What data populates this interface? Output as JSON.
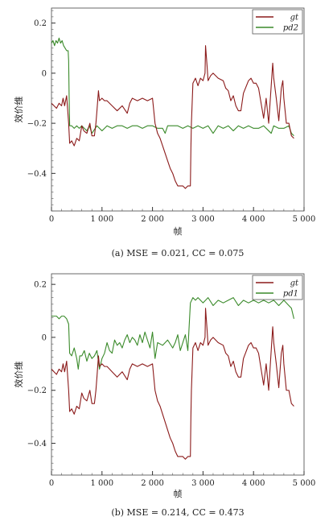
{
  "chart_data": [
    {
      "type": "line",
      "xlabel": "帧",
      "ylabel": "效价维",
      "xlim": [
        0,
        5000
      ],
      "ylim": [
        -0.55,
        0.26
      ],
      "xticks": [
        0,
        1000,
        2000,
        3000,
        4000,
        5000
      ],
      "xtick_labels": [
        "0",
        "1 000",
        "2 000",
        "3 000",
        "4 000",
        "5 000"
      ],
      "yticks": [
        0.2,
        0,
        -0.2,
        -0.4
      ],
      "ytick_labels": [
        "0.2",
        "0",
        "−0.2",
        "−0.4"
      ],
      "legend_position": "top-right",
      "caption": "(a) MSE = 0.021, CC = 0.075",
      "series": [
        {
          "name": "gt",
          "color": "#8b1a1a",
          "x": [
            0,
            50,
            100,
            150,
            200,
            230,
            260,
            300,
            340,
            360,
            400,
            450,
            500,
            550,
            600,
            640,
            700,
            760,
            800,
            850,
            880,
            900,
            930,
            950,
            1000,
            1050,
            1100,
            1150,
            1200,
            1300,
            1400,
            1500,
            1550,
            1600,
            1700,
            1800,
            1900,
            2000,
            2050,
            2100,
            2150,
            2200,
            2250,
            2300,
            2350,
            2400,
            2450,
            2500,
            2550,
            2600,
            2650,
            2700,
            2750,
            2760,
            2770,
            2800,
            2850,
            2900,
            2950,
            3000,
            3040,
            3050,
            3080,
            3100,
            3150,
            3200,
            3300,
            3400,
            3450,
            3500,
            3550,
            3600,
            3650,
            3700,
            3750,
            3800,
            3900,
            3950,
            4000,
            4050,
            4100,
            4200,
            4250,
            4300,
            4350,
            4380,
            4400,
            4450,
            4500,
            4550,
            4580,
            4600,
            4650,
            4700,
            4750,
            4800
          ],
          "y": [
            -0.12,
            -0.13,
            -0.14,
            -0.12,
            -0.13,
            -0.1,
            -0.13,
            -0.09,
            -0.2,
            -0.28,
            -0.27,
            -0.29,
            -0.26,
            -0.27,
            -0.21,
            -0.23,
            -0.24,
            -0.2,
            -0.25,
            -0.25,
            -0.2,
            -0.15,
            -0.07,
            -0.11,
            -0.1,
            -0.11,
            -0.11,
            -0.12,
            -0.13,
            -0.15,
            -0.13,
            -0.16,
            -0.12,
            -0.1,
            -0.11,
            -0.1,
            -0.11,
            -0.1,
            -0.2,
            -0.24,
            -0.26,
            -0.29,
            -0.32,
            -0.35,
            -0.38,
            -0.4,
            -0.43,
            -0.45,
            -0.45,
            -0.45,
            -0.46,
            -0.45,
            -0.45,
            -0.3,
            -0.2,
            -0.04,
            -0.02,
            -0.05,
            -0.02,
            -0.03,
            0.0,
            0.11,
            0.03,
            -0.03,
            -0.01,
            0.0,
            -0.02,
            -0.03,
            -0.06,
            -0.07,
            -0.11,
            -0.09,
            -0.13,
            -0.15,
            -0.15,
            -0.08,
            -0.03,
            -0.02,
            -0.04,
            -0.04,
            -0.06,
            -0.18,
            -0.1,
            -0.2,
            -0.05,
            0.04,
            -0.02,
            -0.1,
            -0.19,
            -0.06,
            -0.03,
            -0.1,
            -0.2,
            -0.2,
            -0.25,
            -0.26
          ]
        },
        {
          "name": "pd2",
          "color": "#3a8a2a",
          "x": [
            0,
            30,
            60,
            90,
            120,
            150,
            180,
            210,
            240,
            270,
            300,
            330,
            340,
            350,
            360,
            400,
            450,
            500,
            550,
            600,
            650,
            700,
            750,
            800,
            900,
            1000,
            1100,
            1200,
            1300,
            1400,
            1500,
            1600,
            1700,
            1800,
            1900,
            2000,
            2100,
            2200,
            2250,
            2300,
            2400,
            2500,
            2600,
            2700,
            2800,
            2900,
            3000,
            3100,
            3200,
            3300,
            3400,
            3500,
            3600,
            3700,
            3800,
            3900,
            4000,
            4100,
            4200,
            4300,
            4350,
            4400,
            4500,
            4600,
            4700,
            4750,
            4800
          ],
          "y": [
            0.12,
            0.13,
            0.11,
            0.13,
            0.12,
            0.14,
            0.12,
            0.13,
            0.11,
            0.1,
            0.09,
            0.09,
            0.05,
            -0.1,
            -0.21,
            -0.21,
            -0.22,
            -0.21,
            -0.22,
            -0.21,
            -0.22,
            -0.23,
            -0.21,
            -0.24,
            -0.21,
            -0.23,
            -0.21,
            -0.22,
            -0.21,
            -0.21,
            -0.22,
            -0.21,
            -0.21,
            -0.22,
            -0.21,
            -0.21,
            -0.22,
            -0.22,
            -0.24,
            -0.21,
            -0.21,
            -0.21,
            -0.22,
            -0.21,
            -0.22,
            -0.21,
            -0.22,
            -0.21,
            -0.24,
            -0.21,
            -0.22,
            -0.21,
            -0.23,
            -0.21,
            -0.22,
            -0.21,
            -0.22,
            -0.22,
            -0.21,
            -0.23,
            -0.24,
            -0.21,
            -0.22,
            -0.22,
            -0.21,
            -0.24,
            -0.25
          ]
        }
      ]
    },
    {
      "type": "line",
      "xlabel": "帧",
      "ylabel": "效价维",
      "xlim": [
        0,
        5000
      ],
      "ylim": [
        -0.52,
        0.24
      ],
      "xticks": [
        0,
        1000,
        2000,
        3000,
        4000,
        5000
      ],
      "xtick_labels": [
        "0",
        "1 000",
        "2 000",
        "3 000",
        "4 000",
        "5 000"
      ],
      "yticks": [
        0.2,
        0,
        -0.2,
        -0.4
      ],
      "ytick_labels": [
        "0.2",
        "0",
        "−0.2",
        "−0.4"
      ],
      "legend_position": "top-right",
      "caption": "(b) MSE = 0.214, CC = 0.473",
      "series": [
        {
          "name": "gt",
          "color": "#8b1a1a",
          "x": [
            0,
            50,
            100,
            150,
            200,
            230,
            260,
            300,
            340,
            360,
            400,
            450,
            500,
            550,
            600,
            640,
            700,
            760,
            800,
            850,
            880,
            900,
            930,
            950,
            1000,
            1050,
            1100,
            1150,
            1200,
            1300,
            1400,
            1500,
            1550,
            1600,
            1700,
            1800,
            1900,
            2000,
            2050,
            2100,
            2150,
            2200,
            2250,
            2300,
            2350,
            2400,
            2450,
            2500,
            2550,
            2600,
            2650,
            2700,
            2750,
            2760,
            2770,
            2800,
            2850,
            2900,
            2950,
            3000,
            3040,
            3050,
            3080,
            3100,
            3150,
            3200,
            3300,
            3400,
            3450,
            3500,
            3550,
            3600,
            3650,
            3700,
            3750,
            3800,
            3900,
            3950,
            4000,
            4050,
            4100,
            4200,
            4250,
            4300,
            4350,
            4380,
            4400,
            4450,
            4500,
            4550,
            4580,
            4600,
            4650,
            4700,
            4750,
            4800
          ],
          "y": [
            -0.12,
            -0.13,
            -0.14,
            -0.12,
            -0.13,
            -0.1,
            -0.13,
            -0.09,
            -0.2,
            -0.28,
            -0.27,
            -0.29,
            -0.26,
            -0.27,
            -0.21,
            -0.23,
            -0.24,
            -0.2,
            -0.25,
            -0.25,
            -0.2,
            -0.15,
            -0.07,
            -0.11,
            -0.1,
            -0.11,
            -0.11,
            -0.12,
            -0.13,
            -0.15,
            -0.13,
            -0.16,
            -0.12,
            -0.1,
            -0.11,
            -0.1,
            -0.11,
            -0.1,
            -0.2,
            -0.24,
            -0.26,
            -0.29,
            -0.32,
            -0.35,
            -0.38,
            -0.4,
            -0.43,
            -0.45,
            -0.45,
            -0.45,
            -0.46,
            -0.45,
            -0.45,
            -0.3,
            -0.2,
            -0.04,
            -0.02,
            -0.05,
            -0.02,
            -0.03,
            0.0,
            0.11,
            0.03,
            -0.03,
            -0.01,
            0.0,
            -0.02,
            -0.03,
            -0.06,
            -0.07,
            -0.11,
            -0.09,
            -0.13,
            -0.15,
            -0.15,
            -0.08,
            -0.03,
            -0.02,
            -0.04,
            -0.04,
            -0.06,
            -0.18,
            -0.1,
            -0.2,
            -0.05,
            0.04,
            -0.02,
            -0.1,
            -0.19,
            -0.06,
            -0.03,
            -0.1,
            -0.2,
            -0.2,
            -0.25,
            -0.26
          ]
        },
        {
          "name": "pd1",
          "color": "#3a8a2a",
          "x": [
            0,
            50,
            100,
            150,
            200,
            250,
            300,
            340,
            360,
            400,
            450,
            500,
            530,
            560,
            600,
            650,
            700,
            750,
            800,
            850,
            900,
            950,
            1000,
            1050,
            1100,
            1150,
            1200,
            1250,
            1300,
            1350,
            1400,
            1450,
            1500,
            1550,
            1600,
            1650,
            1700,
            1750,
            1800,
            1850,
            1900,
            1950,
            2000,
            2050,
            2100,
            2200,
            2300,
            2400,
            2450,
            2500,
            2550,
            2600,
            2650,
            2700,
            2750,
            2800,
            2850,
            2900,
            3000,
            3100,
            3200,
            3300,
            3400,
            3500,
            3600,
            3700,
            3800,
            3900,
            4000,
            4100,
            4200,
            4300,
            4400,
            4500,
            4600,
            4700,
            4750,
            4800
          ],
          "y": [
            0.08,
            0.08,
            0.08,
            0.07,
            0.08,
            0.08,
            0.07,
            0.05,
            -0.06,
            -0.07,
            -0.04,
            -0.08,
            -0.12,
            -0.07,
            -0.07,
            -0.05,
            -0.09,
            -0.06,
            -0.08,
            -0.07,
            -0.05,
            -0.12,
            -0.08,
            -0.06,
            -0.02,
            -0.05,
            -0.06,
            -0.01,
            -0.03,
            -0.02,
            -0.04,
            -0.01,
            0.01,
            -0.02,
            0.0,
            -0.01,
            -0.03,
            0.01,
            -0.02,
            0.02,
            -0.01,
            -0.04,
            0.02,
            -0.08,
            -0.02,
            -0.03,
            -0.01,
            -0.04,
            -0.02,
            0.01,
            -0.05,
            -0.02,
            0.01,
            -0.05,
            0.13,
            0.15,
            0.14,
            0.15,
            0.13,
            0.15,
            0.12,
            0.14,
            0.13,
            0.14,
            0.15,
            0.12,
            0.14,
            0.13,
            0.14,
            0.13,
            0.14,
            0.13,
            0.14,
            0.12,
            0.14,
            0.12,
            0.11,
            0.07
          ]
        }
      ]
    }
  ]
}
